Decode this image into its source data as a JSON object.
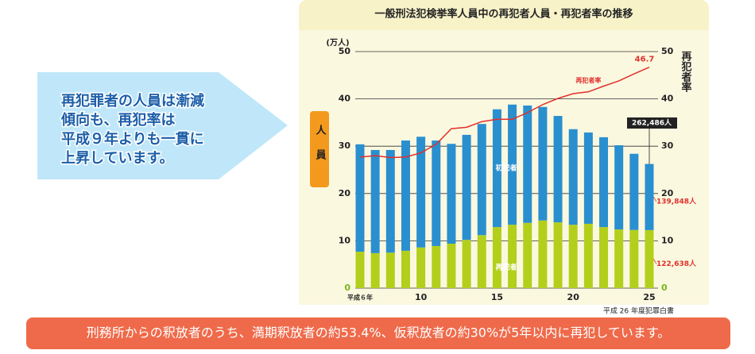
{
  "chart_data": {
    "type": "stacked-bar-line",
    "title": "一般刑法犯検挙率人員中の再犯者人員・再犯者率の推移",
    "y_unit": "(万人)",
    "y_label": "人員",
    "y2_label": "再犯者率",
    "categories": [
      "平成６年",
      null,
      null,
      null,
      "10",
      null,
      null,
      null,
      null,
      "15",
      null,
      null,
      null,
      null,
      "20",
      null,
      null,
      null,
      null,
      "25"
    ],
    "series": [
      {
        "name": "再犯者",
        "color": "#b3cf1c",
        "values": [
          7.7,
          7.4,
          7.5,
          7.9,
          8.6,
          8.9,
          9.4,
          10.2,
          11.2,
          12.9,
          13.4,
          13.8,
          14.3,
          13.9,
          13.4,
          13.6,
          12.9,
          12.4,
          12.3,
          12.2638
        ],
        "value_labels": [
          null,
          null,
          null,
          null,
          null,
          null,
          null,
          null,
          null,
          null,
          null,
          null,
          null,
          null,
          null,
          null,
          null,
          null,
          null,
          "122,638人"
        ]
      },
      {
        "name": "初犯者",
        "color": "#2a8fcf",
        "values": [
          22.7,
          21.8,
          21.7,
          23.3,
          23.4,
          22.3,
          21.1,
          22.2,
          23.5,
          24.9,
          25.4,
          24.8,
          24.0,
          22.5,
          20.2,
          19.3,
          19.0,
          17.8,
          16.1,
          13.9848
        ],
        "value_labels": [
          null,
          null,
          null,
          null,
          null,
          null,
          null,
          null,
          null,
          null,
          null,
          null,
          null,
          null,
          null,
          null,
          null,
          null,
          null,
          "139,848人"
        ]
      },
      {
        "name": "再犯者率",
        "color": "#e0302b",
        "axis": "y2",
        "line": true,
        "values": [
          27.7,
          28.0,
          27.6,
          27.7,
          28.6,
          30.4,
          33.7,
          34.0,
          35.2,
          35.7,
          35.7,
          37.1,
          38.8,
          40.1,
          41.1,
          41.5,
          42.7,
          43.8,
          45.3,
          46.7
        ]
      }
    ],
    "total": {
      "value": 26.2486,
      "label": "262,486人"
    },
    "ylim": [
      0,
      50
    ],
    "yticks": [
      0,
      10,
      20,
      30,
      40,
      50
    ],
    "y2lim": [
      0,
      50
    ],
    "y2ticks": [
      0,
      10,
      20,
      30,
      40,
      50
    ],
    "grid": true
  },
  "callout": {
    "lines": [
      "再犯罪者の人員は漸減",
      "傾向も、再犯率は",
      "平成９年よりも一貫に",
      "上昇しています。"
    ]
  },
  "source": "平成 26 年度犯罪白書",
  "banner": "刑務所からの釈放者のうち、満期釈放者の約53.4%、仮釈放者の約30%が5年以内に再犯しています。"
}
